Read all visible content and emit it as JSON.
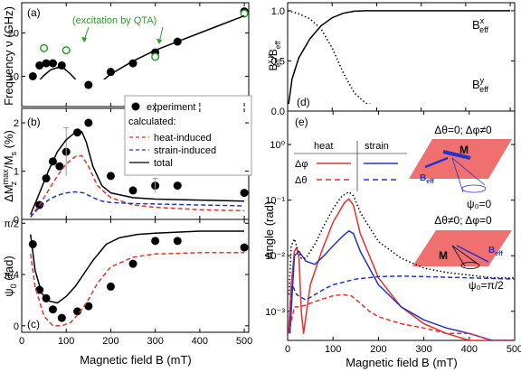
{
  "figure": {
    "left_xlabel": "Magnetic field B (mT)",
    "right_xlabel": "Magnetic field B (mT)"
  },
  "chart_data": [
    {
      "type": "scatter",
      "panel_label": "(a)",
      "ylabel": "Frequency ν (GHz)",
      "xlim": [
        0,
        510
      ],
      "ylim": [
        3,
        27
      ],
      "x_ticks": [
        0,
        100,
        200,
        300,
        400,
        500
      ],
      "y_ticks": [
        10,
        20
      ],
      "annotation": "(excitation by QTA)",
      "colors": {
        "experiment": "#000000",
        "qta": "#2a9d2a",
        "total": "#000000"
      },
      "series": [
        {
          "name": "experiment",
          "kind": "points",
          "x": [
            25,
            40,
            55,
            70,
            90,
            150,
            200,
            250,
            300,
            350,
            500
          ],
          "y": [
            10,
            12.5,
            13,
            13,
            12.5,
            8,
            11,
            13,
            15.5,
            18,
            25
          ]
        },
        {
          "kind": "open-points",
          "x": [
            50,
            100,
            300,
            500
          ],
          "y": [
            16.5,
            16,
            14.5,
            24.5
          ]
        },
        {
          "kind": "line",
          "x": [
            20,
            35,
            50,
            65,
            80,
            95,
            110,
            125,
            140,
            155,
            170,
            200,
            250,
            300,
            350,
            400,
            450,
            500
          ],
          "y": [
            7,
            8.5,
            10.2,
            11.5,
            12,
            11.8,
            10.5,
            8.8,
            7.4,
            7.2,
            8,
            10.5,
            13.5,
            16,
            18,
            20,
            22,
            24
          ]
        }
      ]
    },
    {
      "type": "line",
      "panel_label": "(b)",
      "ylabel": "ΔM",
      "ylabel_sup": "max",
      "ylabel_sub": "z",
      "ylabel_tail": "/M",
      "ylabel_sub2": "s",
      "ylabel_unit": " (%)",
      "xlim": [
        0,
        510
      ],
      "ylim": [
        0,
        2.3
      ],
      "x_ticks": [
        0,
        100,
        200,
        300,
        400,
        500
      ],
      "y_ticks": [
        0,
        1,
        2
      ],
      "colors": {
        "heat": "#e8302a",
        "strain": "#2233cc",
        "total": "#000000",
        "experiment": "#000000"
      },
      "series": [
        {
          "name": "experiment",
          "kind": "points",
          "x": [
            40,
            55,
            70,
            85,
            100,
            125,
            150,
            200,
            250,
            300,
            350,
            500
          ],
          "y": [
            0.3,
            0.85,
            1.2,
            1.1,
            1.4,
            1.8,
            2.0,
            0.9,
            0.6,
            0.7,
            0.7,
            0.55
          ]
        },
        {
          "name": "error",
          "kind": "errorbar",
          "x": [
            100,
            300
          ],
          "y": [
            1.4,
            0.7
          ],
          "err": [
            0.5,
            0.15
          ]
        },
        {
          "name": "heat-induced",
          "kind": "dashed",
          "x": [
            20,
            40,
            60,
            80,
            100,
            120,
            135,
            150,
            170,
            200,
            250,
            300,
            400,
            500
          ],
          "y": [
            0.05,
            0.3,
            0.6,
            0.9,
            1.15,
            1.3,
            1.32,
            1.1,
            0.7,
            0.45,
            0.3,
            0.25,
            0.2,
            0.18
          ]
        },
        {
          "name": "strain-induced",
          "kind": "dashed",
          "x": [
            20,
            40,
            60,
            80,
            100,
            120,
            140,
            160,
            180,
            200,
            250,
            300,
            400,
            500
          ],
          "y": [
            0.05,
            0.25,
            0.4,
            0.5,
            0.55,
            0.57,
            0.55,
            0.45,
            0.38,
            0.35,
            0.33,
            0.32,
            0.3,
            0.28
          ]
        },
        {
          "name": "total",
          "kind": "line",
          "x": [
            20,
            40,
            60,
            80,
            100,
            120,
            135,
            145,
            160,
            180,
            200,
            250,
            300,
            400,
            500
          ],
          "y": [
            0.1,
            0.55,
            1.0,
            1.4,
            1.65,
            1.8,
            1.82,
            1.6,
            1.1,
            0.7,
            0.55,
            0.45,
            0.42,
            0.4,
            0.38
          ]
        }
      ]
    },
    {
      "type": "line",
      "panel_label": "(c)",
      "ylabel": "ψ",
      "ylabel_sub": "0",
      "ylabel_unit": " (rad)",
      "xlim": [
        0,
        510
      ],
      "ylim": [
        -0.1,
        1.63
      ],
      "y_ticks": [
        0,
        0.785,
        1.571
      ],
      "y_tick_labels": [
        "0",
        "π/4",
        "π/2"
      ],
      "x_ticks": [
        0,
        100,
        200,
        300,
        400,
        500
      ],
      "x_tick_labels": [
        "0",
        "100",
        "200",
        "300",
        "400",
        "500"
      ],
      "colors": {
        "heat": "#e8302a",
        "total": "#000000",
        "experiment": "#000000"
      },
      "series": [
        {
          "name": "experiment",
          "kind": "points",
          "x": [
            25,
            40,
            55,
            70,
            90,
            125,
            150,
            200,
            250,
            300,
            350,
            500
          ],
          "y": [
            1.25,
            0.55,
            0.42,
            0.25,
            0.12,
            0.22,
            0.3,
            0.6,
            0.95,
            1.3,
            1.3,
            1.2
          ]
        },
        {
          "name": "heat-induced",
          "kind": "dashed",
          "x": [
            20,
            30,
            50,
            70,
            90,
            110,
            130,
            150,
            170,
            200,
            250,
            300,
            400,
            500
          ],
          "y": [
            1.1,
            0.6,
            0.15,
            0.0,
            0.0,
            0.05,
            0.2,
            0.4,
            0.65,
            0.9,
            1.05,
            1.1,
            1.12,
            1.12
          ]
        },
        {
          "name": "total",
          "kind": "line",
          "x": [
            20,
            30,
            45,
            60,
            80,
            100,
            120,
            140,
            160,
            190,
            220,
            260,
            300,
            400,
            500
          ],
          "y": [
            1.4,
            0.85,
            0.5,
            0.38,
            0.35,
            0.45,
            0.6,
            0.8,
            1.0,
            1.25,
            1.35,
            1.4,
            1.42,
            1.45,
            1.45
          ]
        }
      ]
    },
    {
      "type": "line",
      "panel_label": "(d)",
      "ylabel": "B",
      "ylabel_sup": "x,y",
      "ylabel_sub": "eff",
      "ylabel_tail": "/B",
      "ylabel_sub2": "eff",
      "xlim": [
        0,
        510
      ],
      "ylim": [
        0,
        1.08
      ],
      "y_ticks": [
        0,
        0.5,
        1.0
      ],
      "y_tick_labels": [
        "0.0",
        "0.5",
        "1.0"
      ],
      "x_ticks": [
        0,
        100,
        200,
        300,
        400,
        500
      ],
      "colors": {
        "x": "#000000",
        "y": "#000000"
      },
      "series": [
        {
          "name": "B_eff^x",
          "label_main": "B",
          "label_sup": "x",
          "label_sub": "eff",
          "kind": "line",
          "x": [
            0,
            10,
            25,
            50,
            75,
            100,
            125,
            150,
            175,
            200,
            300,
            400,
            500
          ],
          "y": [
            0,
            0.32,
            0.53,
            0.72,
            0.85,
            0.93,
            0.975,
            0.995,
            1.0,
            1.0,
            1.0,
            1.0,
            1.0
          ]
        },
        {
          "name": "B_eff^y",
          "label_main": "B",
          "label_sup": "y",
          "label_sub": "eff",
          "kind": "dotted",
          "x": [
            0,
            25,
            50,
            75,
            100,
            125,
            150,
            175,
            200,
            250,
            300,
            400,
            500
          ],
          "y": [
            1.0,
            0.97,
            0.92,
            0.82,
            0.63,
            0.38,
            0.18,
            0.08,
            0.05,
            0.04,
            0.03,
            0.03,
            0.03
          ]
        }
      ]
    },
    {
      "type": "line",
      "panel_label": "(e)",
      "ylabel": "Angle (rad)",
      "yscale": "log",
      "xlim": [
        0,
        500
      ],
      "ylim": [
        0.0003,
        4
      ],
      "y_ticks": [
        0.001,
        0.01,
        0.1,
        1
      ],
      "y_tick_labels": [
        "10⁻³",
        "10⁻²",
        "10⁻¹",
        "10⁰"
      ],
      "x_ticks": [
        0,
        100,
        200,
        300,
        400,
        500
      ],
      "x_tick_labels": [
        "0",
        "100",
        "200",
        "300",
        "400",
        "500"
      ],
      "legend": {
        "col1": "heat",
        "col2": "strain",
        "row1": "Δφ",
        "row2": "Δθ"
      },
      "insets": {
        "top_label": "Δθ=0; Δφ≠0",
        "top_psi": "ψ₀=0",
        "bottom_label": "Δθ≠0; Δφ=0",
        "bottom_psi": "ψ₀=π/2",
        "m_label": "M",
        "beff_label": "B",
        "beff_sub": "eff"
      },
      "colors": {
        "heat": "#e8302a",
        "strain": "#2233cc",
        "total": "#000000",
        "plate": "#f06f6f"
      },
      "series": [
        {
          "name": "heat Δφ",
          "kind": "line",
          "x": [
            2,
            8,
            15,
            20,
            25,
            30,
            35,
            50,
            75,
            100,
            125,
            135,
            145,
            160,
            200,
            250,
            300,
            350,
            400,
            450,
            500
          ],
          "y": [
            0.0004,
            0.003,
            0.012,
            0.014,
            0.009,
            0.001,
            0.0004,
            0.003,
            0.012,
            0.04,
            0.09,
            0.105,
            0.08,
            0.025,
            0.004,
            0.0012,
            0.0006,
            0.0004,
            0.0003,
            0.0003,
            0.0003
          ]
        },
        {
          "name": "strain Δφ",
          "kind": "line",
          "x": [
            5,
            15,
            25,
            40,
            60,
            80,
            100,
            120,
            135,
            145,
            160,
            200,
            250,
            300,
            350,
            400,
            450,
            500
          ],
          "y": [
            0.0004,
            0.01,
            0.012,
            0.008,
            0.007,
            0.01,
            0.015,
            0.022,
            0.028,
            0.025,
            0.012,
            0.003,
            0.0012,
            0.0007,
            0.0005,
            0.0004,
            0.0003,
            0.0003
          ]
        },
        {
          "name": "heat Δθ",
          "kind": "dashed",
          "x": [
            5,
            15,
            25,
            40,
            60,
            80,
            100,
            120,
            140,
            160,
            180,
            200,
            250,
            300,
            350,
            400,
            450,
            500
          ],
          "y": [
            0.0005,
            0.0012,
            0.0012,
            0.0013,
            0.0015,
            0.0017,
            0.0019,
            0.002,
            0.0019,
            0.0014,
            0.001,
            0.0008,
            0.0006,
            0.0005,
            0.0004,
            0.0004,
            0.0003,
            0.0003
          ]
        },
        {
          "name": "strain Δθ",
          "kind": "dashed",
          "x": [
            5,
            10,
            20,
            40,
            60,
            80,
            100,
            150,
            200,
            250,
            300,
            400,
            500
          ],
          "y": [
            0.0004,
            0.003,
            0.002,
            0.0016,
            0.002,
            0.0025,
            0.003,
            0.0038,
            0.0042,
            0.0043,
            0.0042,
            0.004,
            0.0038
          ]
        },
        {
          "name": "total",
          "kind": "dotted",
          "x": [
            3,
            8,
            15,
            22,
            30,
            40,
            60,
            80,
            100,
            120,
            135,
            145,
            160,
            200,
            250,
            300,
            350,
            400,
            450,
            500
          ],
          "y": [
            0.002,
            0.015,
            0.02,
            0.013,
            0.009,
            0.009,
            0.016,
            0.035,
            0.07,
            0.12,
            0.14,
            0.12,
            0.06,
            0.018,
            0.009,
            0.006,
            0.005,
            0.0045,
            0.004,
            0.004
          ]
        }
      ]
    }
  ],
  "legend_box": {
    "experiment": "experiment",
    "calculated": "calculated:",
    "heat": "heat-induced",
    "strain": "strain-induced",
    "total": "total"
  }
}
